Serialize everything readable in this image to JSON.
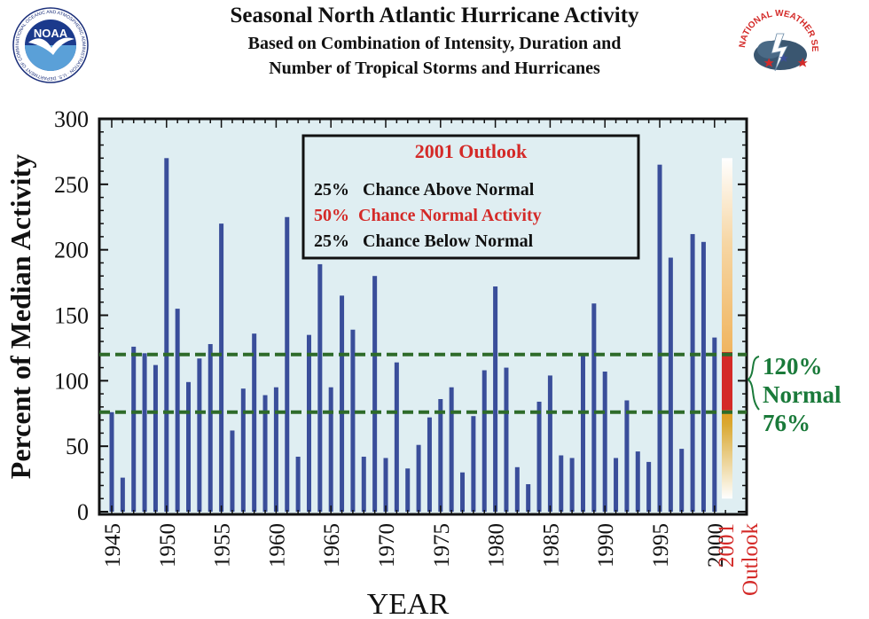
{
  "header": {
    "title": "Seasonal North Atlantic Hurricane Activity",
    "subtitle_line1": "Based on Combination of Intensity, Duration and",
    "subtitle_line2": "Number of Tropical Storms and Hurricanes"
  },
  "logos": {
    "noaa_text": "NOAA",
    "noaa_ring_text": "NATIONAL OCEANIC AND ATMOSPHERIC ADMINISTRATION · U.S. DEPARTMENT OF COMMERCE",
    "nws_ring_text": "NATIONAL WEATHER SERVICE"
  },
  "colors": {
    "bar": "#3a4e9a",
    "plot_bg": "#dfeef2",
    "normal_line": "#2e6b2a",
    "normal_text": "#1a7a3a",
    "outlook_red": "#d42a28",
    "text": "#111111"
  },
  "outlook_box": {
    "title": "2001 Outlook",
    "line1": "25%   Chance Above Normal",
    "line2": "50%  Chance Normal Activity",
    "line3": "25%   Chance Below Normal"
  },
  "normal_range": {
    "upper_label": "120%",
    "middle_label": "Normal",
    "lower_label": "76%",
    "upper": 120,
    "lower": 76
  },
  "chart_data": {
    "type": "bar",
    "title": "Seasonal North Atlantic Hurricane Activity",
    "xlabel": "YEAR",
    "ylabel": "Percent of Median Activity",
    "ylim": [
      0,
      300
    ],
    "yticks": [
      "0",
      "50",
      "100",
      "150",
      "200",
      "250",
      "300"
    ],
    "xticks": [
      "1945",
      "1950",
      "1955",
      "1960",
      "1965",
      "1970",
      "1975",
      "1980",
      "1985",
      "1990",
      "1995",
      "2000"
    ],
    "outlook_tick": "2001",
    "outlook_label": "Outlook",
    "grid": false,
    "x": [
      1945,
      1946,
      1947,
      1948,
      1949,
      1950,
      1951,
      1952,
      1953,
      1954,
      1955,
      1956,
      1957,
      1958,
      1959,
      1960,
      1961,
      1962,
      1963,
      1964,
      1965,
      1966,
      1967,
      1968,
      1969,
      1970,
      1971,
      1972,
      1973,
      1974,
      1975,
      1976,
      1977,
      1978,
      1979,
      1980,
      1981,
      1982,
      1983,
      1984,
      1985,
      1986,
      1987,
      1988,
      1989,
      1990,
      1991,
      1992,
      1993,
      1994,
      1995,
      1996,
      1997,
      1998,
      1999,
      2000
    ],
    "values": [
      76,
      26,
      126,
      121,
      112,
      270,
      155,
      99,
      117,
      128,
      220,
      62,
      94,
      136,
      89,
      95,
      225,
      42,
      135,
      189,
      95,
      165,
      139,
      42,
      180,
      41,
      114,
      33,
      51,
      72,
      86,
      95,
      30,
      73,
      108,
      172,
      110,
      34,
      21,
      84,
      104,
      43,
      41,
      120,
      159,
      107,
      41,
      85,
      46,
      38,
      265,
      194,
      48,
      212,
      206,
      133
    ],
    "outlook_range": [
      10,
      270
    ]
  }
}
